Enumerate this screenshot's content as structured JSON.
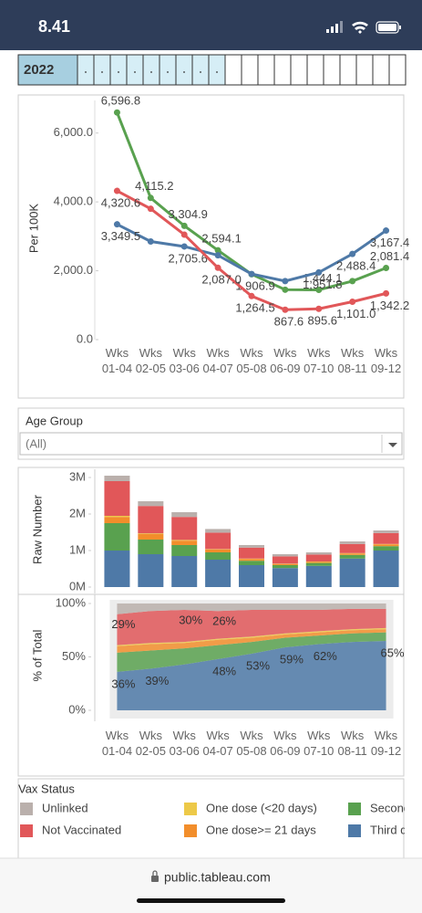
{
  "status_bar": {
    "time": "8.41"
  },
  "year_filter": {
    "label": "2022"
  },
  "filter": {
    "title": "Age Group",
    "value": "(All)"
  },
  "browser": {
    "url": "public.tableau.com"
  },
  "chart_data": [
    {
      "type": "line",
      "ylabel": "Per 100K",
      "categories": [
        "Wks 01-04",
        "Wks 02-05",
        "Wks 03-06",
        "Wks 04-07",
        "Wks 05-08",
        "Wks 06-09",
        "Wks 07-10",
        "Wks 08-11",
        "Wks 09-12"
      ],
      "ylim": [
        0,
        7000
      ],
      "yticks": [
        {
          "value": 0,
          "label": "0.0"
        },
        {
          "value": 2000,
          "label": "2,000.0"
        },
        {
          "value": 4000,
          "label": "4,000.0"
        },
        {
          "value": 6000,
          "label": "6,000.0"
        }
      ],
      "series": [
        {
          "color": "#59a14f",
          "values": [
            6596.8,
            4115.2,
            3304.9,
            2594.1,
            1900,
            1450,
            1444.1,
            1700,
            2081.4
          ],
          "value_labels": [
            "6,596.8",
            "4,115.2",
            "3,304.9",
            "2,594.1",
            null,
            null,
            "1,444.1",
            null,
            "2,081.4"
          ]
        },
        {
          "color": "#4e79a7",
          "values": [
            3349.5,
            2850,
            2705.6,
            2450,
            1906.9,
            1700,
            1951.8,
            2488.4,
            3167.4
          ],
          "value_labels": [
            "3,349.5",
            null,
            "2,705.6",
            null,
            "1,906.9",
            null,
            "1,951.8",
            "2,488.4",
            "3,167.4"
          ]
        },
        {
          "color": "#e15759",
          "values": [
            4320.6,
            3800,
            3050,
            2087.0,
            1264.5,
            867.6,
            895.6,
            1101.0,
            1342.2
          ],
          "value_labels": [
            "4,320.6",
            null,
            null,
            "2,087.0",
            "1,264.5",
            "867.6",
            "895.6",
            "1,101.0",
            "1,342.2"
          ]
        }
      ]
    },
    {
      "type": "bar",
      "stacked": true,
      "ylabel": "Raw Number",
      "legend_title": "Vax Status",
      "ylim": [
        0,
        3.2
      ],
      "yticks": [
        {
          "value": 0,
          "label": "0M"
        },
        {
          "value": 1,
          "label": "1M"
        },
        {
          "value": 2,
          "label": "2M"
        },
        {
          "value": 3,
          "label": "3M"
        }
      ],
      "series": [
        {
          "name": "Third dose",
          "color": "#4e79a7",
          "values": [
            1.0,
            0.9,
            0.85,
            0.75,
            0.6,
            0.52,
            0.58,
            0.78,
            1.0
          ]
        },
        {
          "name": "Second dose",
          "color": "#59a14f",
          "values": [
            0.75,
            0.4,
            0.3,
            0.2,
            0.12,
            0.08,
            0.08,
            0.1,
            0.12
          ]
        },
        {
          "name": "One dose>= 21 days",
          "color": "#f28e2b",
          "values": [
            0.17,
            0.15,
            0.12,
            0.08,
            0.05,
            0.03,
            0.03,
            0.04,
            0.05
          ]
        },
        {
          "name": "One dose (<20 days)",
          "color": "#edc948",
          "values": [
            0.03,
            0.02,
            0.02,
            0.01,
            0.01,
            0.01,
            0.01,
            0.01,
            0.01
          ]
        },
        {
          "name": "Not Vaccinated",
          "color": "#e15759",
          "values": [
            0.95,
            0.75,
            0.63,
            0.45,
            0.3,
            0.2,
            0.19,
            0.25,
            0.3
          ]
        },
        {
          "name": "Unlinked",
          "color": "#bab0ac",
          "values": [
            0.15,
            0.13,
            0.13,
            0.1,
            0.07,
            0.06,
            0.06,
            0.07,
            0.07
          ]
        }
      ]
    },
    {
      "type": "area",
      "stacked": true,
      "ylabel": "% of Total",
      "categories": [
        "Wks 01-04",
        "Wks 02-05",
        "Wks 03-06",
        "Wks 04-07",
        "Wks 05-08",
        "Wks 06-09",
        "Wks 07-10",
        "Wks 08-11",
        "Wks 09-12"
      ],
      "ylim": [
        0,
        100
      ],
      "yticks": [
        {
          "value": 0,
          "label": "0%"
        },
        {
          "value": 50,
          "label": "50%"
        },
        {
          "value": 100,
          "label": "100%"
        }
      ],
      "series": [
        {
          "color": "#4e79a7",
          "values": [
            36,
            39,
            43,
            48,
            53,
            59,
            62,
            64,
            65
          ],
          "value_labels": [
            "36%",
            "39%",
            null,
            "48%",
            "53%",
            "59%",
            "62%",
            null,
            "65%"
          ]
        },
        {
          "color": "#59a14f",
          "values": [
            18,
            17,
            15,
            13,
            11,
            9,
            8,
            8,
            8
          ]
        },
        {
          "color": "#f28e2b",
          "values": [
            6,
            6,
            5,
            5,
            4,
            3,
            3,
            3,
            3
          ]
        },
        {
          "color": "#edc948",
          "values": [
            1,
            1,
            1,
            1,
            1,
            1,
            1,
            1,
            1
          ]
        },
        {
          "color": "#e15759",
          "values": [
            29,
            30,
            30,
            26,
            25,
            22,
            20,
            19,
            18
          ],
          "value_labels": [
            "29%",
            null,
            "30%",
            "26%",
            null,
            null,
            null,
            null,
            null
          ]
        },
        {
          "color": "#bab0ac",
          "values": [
            10,
            7,
            6,
            7,
            6,
            6,
            6,
            5,
            5
          ]
        }
      ]
    }
  ]
}
